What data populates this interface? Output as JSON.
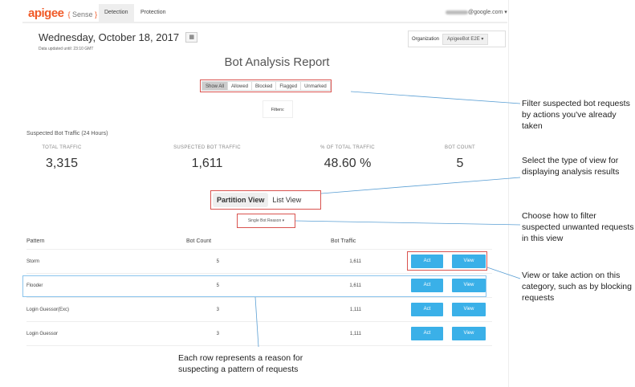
{
  "header": {
    "logo": "apigee",
    "product_open": "{ ",
    "product": "Sense",
    "product_close": " }",
    "tabs": [
      {
        "label": "Detection"
      },
      {
        "label": "Protection"
      }
    ],
    "account": "@google.com ▾"
  },
  "date": "Wednesday, October 18, 2017",
  "calendar_icon": "▦",
  "updated": "Data updated until: 23:10 GMT",
  "org": {
    "label": "Organization",
    "value": "ApigeeBot E2E ▾"
  },
  "title": "Bot Analysis Report",
  "filters": {
    "buttons": [
      "Show All",
      "Allowed",
      "Blocked",
      "Flagged",
      "Unmarked"
    ],
    "selected": "Show All",
    "label": "Filters:"
  },
  "summary": {
    "heading": "Suspected Bot Traffic (24 Hours)",
    "stats": [
      {
        "label": "TOTAL TRAFFIC",
        "value": "3,315"
      },
      {
        "label": "SUSPECTED BOT TRAFFIC",
        "value": "1,611"
      },
      {
        "label": "% OF TOTAL TRAFFIC",
        "value": "48.60 %"
      },
      {
        "label": "BOT COUNT",
        "value": "5"
      }
    ]
  },
  "views": {
    "partition": "Partition View",
    "list": "List View",
    "selected": "Partition View"
  },
  "dropdown": "Single Bot Reason ▾",
  "table": {
    "headers": [
      "Pattern",
      "Bot Count",
      "Bot Traffic"
    ],
    "act": "Act",
    "view": "View",
    "rows": [
      {
        "pattern": "Storm",
        "count": "5",
        "traffic": "1,611"
      },
      {
        "pattern": "Flooder",
        "count": "5",
        "traffic": "1,611"
      },
      {
        "pattern": "Login Guessor(Exc)",
        "count": "3",
        "traffic": "1,111"
      },
      {
        "pattern": "Login Guessor",
        "count": "3",
        "traffic": "1,111"
      }
    ]
  },
  "annotations": {
    "filter": "Filter suspected bot requests by actions you've already taken",
    "view": "Select the type of view for displaying analysis results",
    "dropdown": "Choose how to filter suspected unwanted requests in this view",
    "actions": "View or take action on this category, such as by blocking requests",
    "row": "Each row represents a reason for suspecting a pattern of requests"
  },
  "colors": {
    "brand": "#f05a28",
    "button": "#3ab0e8",
    "highlight": "#d9534f",
    "callout": "#5a9fd4"
  }
}
